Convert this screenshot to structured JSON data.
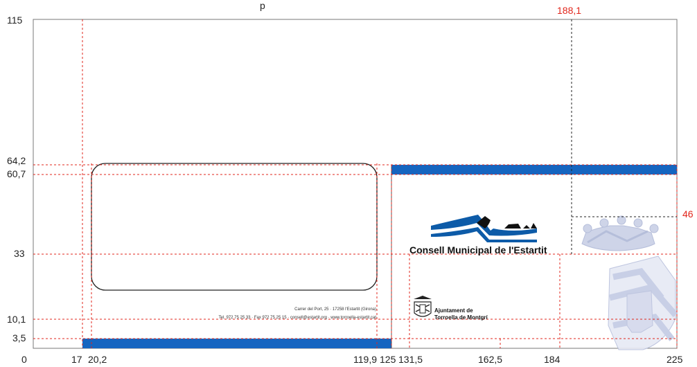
{
  "colors": {
    "guide_red": "#e1251b",
    "guide_black": "#222222",
    "band_blue": "#1565c0",
    "logo_blue": "#0d5ba8",
    "crest_light": "#c9d0e6"
  },
  "top_center_label": "p",
  "y_labels": {
    "top": "115",
    "y64": "64,2",
    "y60": "60,7",
    "y33": "33",
    "y10": "10,1",
    "y3": "3,5"
  },
  "x_labels": {
    "x0": "0",
    "x17": "17",
    "x20": "20,2",
    "x119": "119,9",
    "x125": "125",
    "x131": "131,5",
    "x162": "162,5",
    "x184": "184",
    "x225": "225"
  },
  "red_labels": {
    "x188": "188,1",
    "y46": "46"
  },
  "address": {
    "line1": "Carrer del Port, 25 · 17258 l'Estartit (Girona)",
    "line2": "Tel. 972 75 25 33 · Fax 972 75 25 15 · consell@estartit.org · www.torroella-estartit.cat"
  },
  "brand": {
    "name": "Consell Municipal de l'Estartit",
    "ajuntament_line1": "Ajuntament de",
    "ajuntament_line2": "Torroella de Montgrí"
  },
  "icons": {
    "brand_logo": "mountain-waves-logo",
    "ajuntament_shield": "municipal-shield-icon",
    "crest": "town-crown-crest"
  }
}
